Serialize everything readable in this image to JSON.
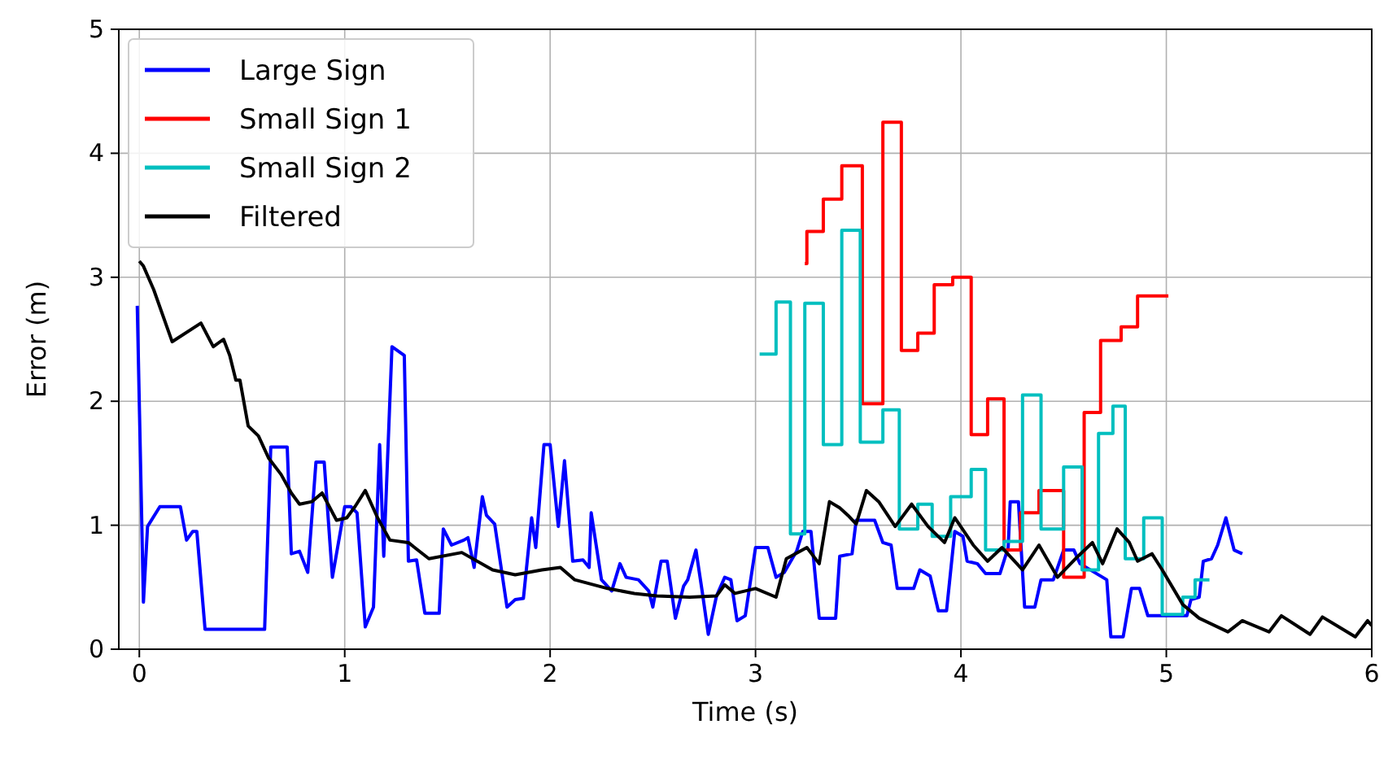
{
  "chart_data": {
    "type": "line",
    "xlabel": "Time (s)",
    "ylabel": "Error (m)",
    "xlim": [
      -0.1,
      6
    ],
    "ylim": [
      0,
      5
    ],
    "xticks": [
      0,
      1,
      2,
      3,
      4,
      5,
      6
    ],
    "yticks": [
      0,
      1,
      2,
      3,
      4,
      5
    ],
    "grid": true,
    "legend": "top left",
    "series": [
      {
        "name": "Large Sign",
        "color": "#0000ff",
        "x": [
          -0.01,
          0.02,
          0.04,
          0.1,
          0.2,
          0.23,
          0.26,
          0.28,
          0.32,
          0.61,
          0.64,
          0.72,
          0.74,
          0.78,
          0.82,
          0.86,
          0.9,
          0.94,
          1.0,
          1.03,
          1.06,
          1.1,
          1.14,
          1.17,
          1.19,
          1.23,
          1.29,
          1.31,
          1.35,
          1.39,
          1.46,
          1.48,
          1.52,
          1.58,
          1.6,
          1.63,
          1.67,
          1.69,
          1.73,
          1.79,
          1.83,
          1.87,
          1.91,
          1.93,
          1.97,
          2.0,
          2.04,
          2.07,
          2.11,
          2.16,
          2.19,
          2.2,
          2.25,
          2.3,
          2.34,
          2.37,
          2.43,
          2.48,
          2.5,
          2.54,
          2.57,
          2.61,
          2.65,
          2.67,
          2.71,
          2.74,
          2.77,
          2.81,
          2.85,
          2.88,
          2.91,
          2.95,
          3.0,
          3.06,
          3.1,
          3.14,
          3.2,
          3.23,
          3.27,
          3.31,
          3.39,
          3.41,
          3.47,
          3.49,
          3.58,
          3.62,
          3.66,
          3.69,
          3.77,
          3.8,
          3.85,
          3.89,
          3.93,
          3.97,
          4.01,
          4.03,
          4.08,
          4.12,
          4.19,
          4.23,
          4.24,
          4.28,
          4.31,
          4.36,
          4.39,
          4.45,
          4.5,
          4.55,
          4.58,
          4.71,
          4.73,
          4.79,
          4.83,
          4.87,
          4.91,
          5.1,
          5.12,
          5.16,
          5.18,
          5.22,
          5.25,
          5.29,
          5.33,
          5.37
        ],
        "values": [
          2.77,
          0.38,
          0.99,
          1.15,
          1.15,
          0.88,
          0.95,
          0.95,
          0.16,
          0.16,
          1.63,
          1.63,
          0.77,
          0.79,
          0.62,
          1.51,
          1.51,
          0.58,
          1.15,
          1.15,
          1.1,
          0.18,
          0.34,
          1.65,
          0.75,
          2.44,
          2.37,
          0.71,
          0.72,
          0.29,
          0.29,
          0.97,
          0.84,
          0.88,
          0.9,
          0.66,
          1.23,
          1.08,
          1.01,
          0.34,
          0.4,
          0.41,
          1.06,
          0.82,
          1.65,
          1.65,
          0.99,
          1.52,
          0.71,
          0.72,
          0.66,
          1.1,
          0.56,
          0.47,
          0.69,
          0.58,
          0.56,
          0.47,
          0.34,
          0.71,
          0.71,
          0.25,
          0.51,
          0.56,
          0.8,
          0.47,
          0.12,
          0.43,
          0.58,
          0.56,
          0.23,
          0.27,
          0.82,
          0.82,
          0.58,
          0.62,
          0.79,
          0.95,
          0.95,
          0.25,
          0.25,
          0.75,
          0.77,
          1.04,
          1.04,
          0.86,
          0.84,
          0.49,
          0.49,
          0.64,
          0.59,
          0.31,
          0.31,
          0.95,
          0.91,
          0.71,
          0.69,
          0.61,
          0.61,
          0.82,
          1.19,
          1.19,
          0.34,
          0.34,
          0.56,
          0.56,
          0.8,
          0.8,
          0.69,
          0.56,
          0.1,
          0.1,
          0.49,
          0.49,
          0.27,
          0.27,
          0.4,
          0.42,
          0.71,
          0.73,
          0.84,
          1.06,
          0.8,
          0.77
        ]
      },
      {
        "name": "Small Sign 1",
        "color": "#ff0000",
        "type": "step",
        "x": [
          3.24,
          3.25,
          3.33,
          3.42,
          3.52,
          3.62,
          3.71,
          3.79,
          3.87,
          3.96,
          4.05,
          4.13,
          4.21,
          4.29,
          4.38,
          4.5,
          4.6,
          4.68,
          4.78,
          4.86,
          5.01
        ],
        "values": [
          3.11,
          3.37,
          3.63,
          3.9,
          1.98,
          4.25,
          2.41,
          2.55,
          2.94,
          3.0,
          1.73,
          2.02,
          0.8,
          1.1,
          1.28,
          0.58,
          1.91,
          2.49,
          2.6,
          2.85,
          2.85
        ]
      },
      {
        "name": "Small Sign 2",
        "color": "#00bfbf",
        "type": "step",
        "x": [
          3.02,
          3.1,
          3.17,
          3.24,
          3.33,
          3.42,
          3.51,
          3.62,
          3.7,
          3.79,
          3.86,
          3.95,
          4.05,
          4.12,
          4.21,
          4.3,
          4.39,
          4.5,
          4.59,
          4.67,
          4.74,
          4.8,
          4.89,
          4.98,
          5.08,
          5.14,
          5.21
        ],
        "values": [
          2.38,
          2.8,
          0.93,
          2.79,
          1.65,
          3.38,
          1.67,
          1.93,
          0.97,
          1.17,
          0.91,
          1.23,
          1.45,
          0.8,
          0.87,
          2.05,
          0.97,
          1.47,
          0.64,
          1.74,
          1.96,
          0.73,
          1.06,
          0.28,
          0.42,
          0.56,
          0.56
        ]
      },
      {
        "name": "Filtered",
        "color": "#000000",
        "x": [
          0.0,
          0.02,
          0.07,
          0.16,
          0.3,
          0.36,
          0.41,
          0.44,
          0.47,
          0.49,
          0.53,
          0.58,
          0.63,
          0.69,
          0.74,
          0.78,
          0.84,
          0.89,
          0.96,
          1.01,
          1.05,
          1.1,
          1.16,
          1.22,
          1.31,
          1.41,
          1.57,
          1.72,
          1.83,
          1.96,
          2.05,
          2.12,
          2.28,
          2.41,
          2.52,
          2.68,
          2.81,
          2.85,
          2.9,
          3.0,
          3.1,
          3.15,
          3.25,
          3.31,
          3.36,
          3.41,
          3.45,
          3.49,
          3.54,
          3.6,
          3.68,
          3.76,
          3.84,
          3.92,
          3.97,
          4.06,
          4.13,
          4.2,
          4.3,
          4.38,
          4.47,
          4.57,
          4.64,
          4.69,
          4.76,
          4.82,
          4.86,
          4.93,
          4.98,
          5.08,
          5.16,
          5.3,
          5.37,
          5.5,
          5.56,
          5.7,
          5.76,
          5.92,
          5.98,
          6.0
        ],
        "values": [
          3.13,
          3.09,
          2.9,
          2.48,
          2.63,
          2.44,
          2.5,
          2.37,
          2.17,
          2.17,
          1.8,
          1.72,
          1.54,
          1.41,
          1.26,
          1.17,
          1.19,
          1.26,
          1.04,
          1.06,
          1.15,
          1.28,
          1.06,
          0.88,
          0.86,
          0.73,
          0.78,
          0.64,
          0.6,
          0.64,
          0.66,
          0.56,
          0.49,
          0.45,
          0.43,
          0.42,
          0.43,
          0.52,
          0.45,
          0.49,
          0.42,
          0.73,
          0.82,
          0.69,
          1.19,
          1.14,
          1.08,
          1.01,
          1.28,
          1.19,
          0.99,
          1.17,
          0.99,
          0.86,
          1.06,
          0.84,
          0.71,
          0.82,
          0.64,
          0.84,
          0.58,
          0.75,
          0.86,
          0.69,
          0.97,
          0.86,
          0.71,
          0.77,
          0.64,
          0.36,
          0.25,
          0.14,
          0.23,
          0.14,
          0.27,
          0.12,
          0.26,
          0.1,
          0.23,
          0.19
        ]
      }
    ]
  }
}
